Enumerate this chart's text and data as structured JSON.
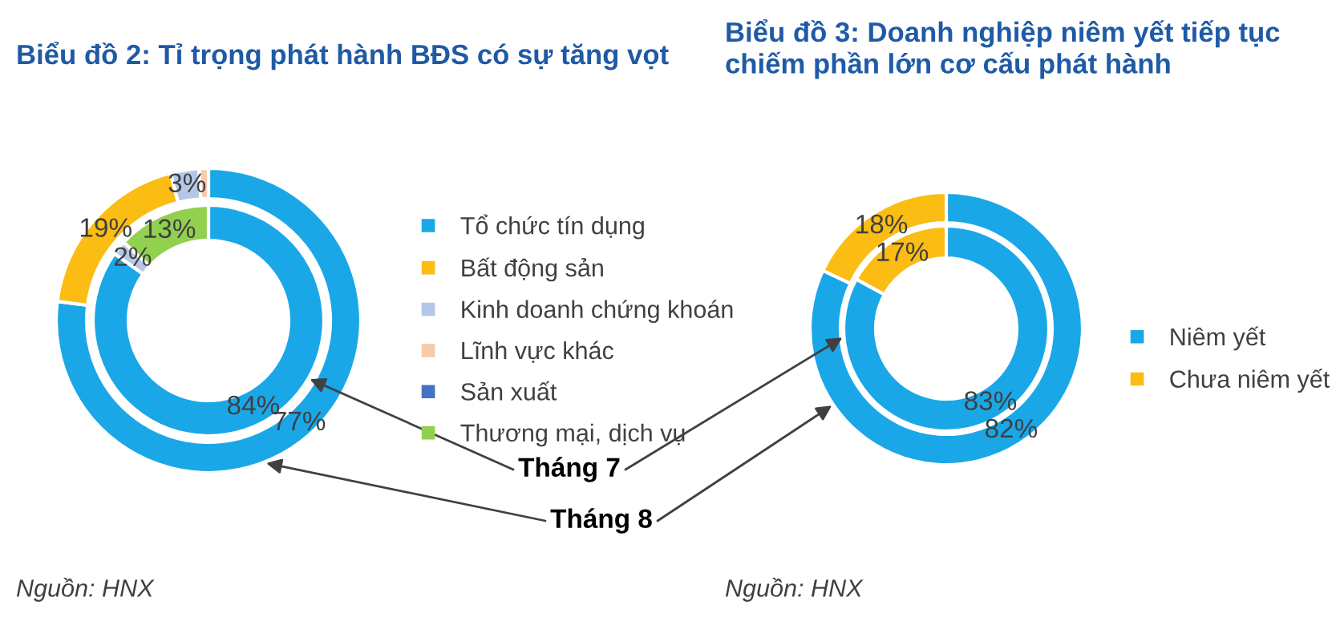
{
  "chart_data": [
    {
      "type": "donut",
      "title": "Biểu đồ 2: Tỉ trọng phát hành BĐS có sự tăng vọt",
      "categories": [
        "Tổ chức tín dụng",
        "Bất động sản",
        "Kinh doanh chứng khoán",
        "Lĩnh vực khác",
        "Sản xuất",
        "Thương mại, dịch vụ"
      ],
      "colors": [
        "#1aa7e8",
        "#fbbd14",
        "#b4c7e7",
        "#f8cbad",
        "#4472c4",
        "#92d050"
      ],
      "series": [
        {
          "name": "Tháng 7",
          "values": [
            84,
            null,
            2,
            null,
            null,
            13
          ],
          "value_labels": [
            "84%",
            null,
            "2%",
            null,
            null,
            "13%"
          ]
        },
        {
          "name": "Tháng 8",
          "values": [
            77,
            19,
            3,
            1,
            null,
            null
          ],
          "value_labels": [
            "77%",
            "19%",
            "3%",
            null,
            null,
            null
          ]
        }
      ],
      "legend": "right",
      "annotations": [
        "Nguồn: HNX"
      ]
    },
    {
      "type": "donut",
      "title": "Biểu đồ 3: Doanh nghiệp niêm yết tiếp tục chiếm phần lớn cơ cấu phát hành",
      "categories": [
        "Niêm yết",
        "Chưa niêm yết"
      ],
      "colors": [
        "#1aa7e8",
        "#fbbd14"
      ],
      "series": [
        {
          "values": [
            83,
            17
          ],
          "value_labels": [
            "83%",
            "17%"
          ]
        },
        {
          "values": [
            82,
            18
          ],
          "value_labels": [
            "82%",
            "18%"
          ]
        }
      ],
      "legend": "right",
      "annotations": [
        "Nguồn: HNX"
      ]
    }
  ]
}
